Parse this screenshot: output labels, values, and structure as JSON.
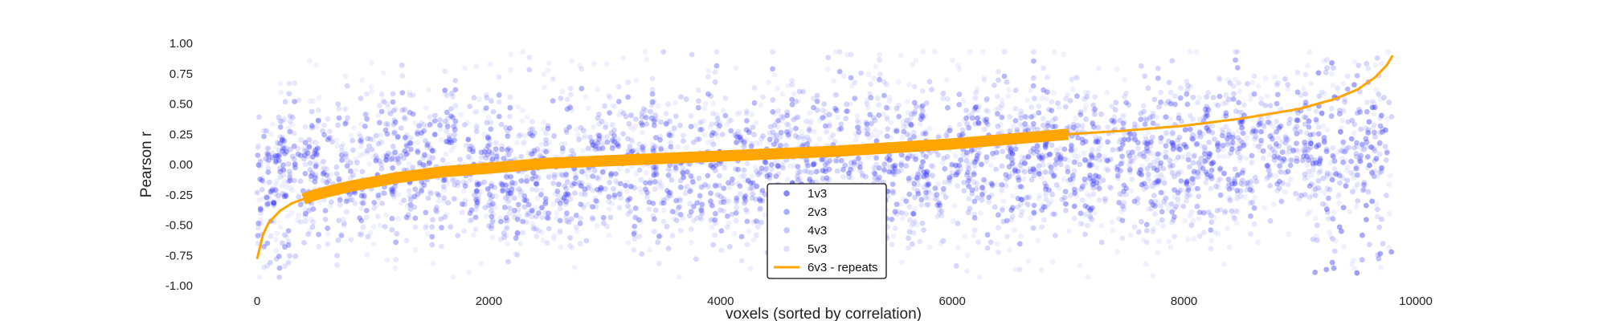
{
  "chart_data": {
    "type": "scatter",
    "title": "",
    "xlabel": "voxels (sorted by correlation)",
    "ylabel": "Pearson r",
    "xlim": [
      0,
      10000
    ],
    "ylim": [
      -1.0,
      1.0
    ],
    "xticks": [
      "0",
      "2000",
      "4000",
      "6000",
      "8000",
      "10000"
    ],
    "yticks": [
      "1.00",
      "0.75",
      "0.50",
      "0.25",
      "0.00",
      "-0.25",
      "-0.50",
      "-0.75",
      "-1.00"
    ],
    "grid": false,
    "legend_position": "bottom-center",
    "n_voxels": 9800,
    "series": [
      {
        "name": "1v3",
        "kind": "scatter",
        "color": "#3333ff",
        "opacity": 0.35
      },
      {
        "name": "2v3",
        "kind": "scatter",
        "color": "#5c5cff",
        "opacity": 0.25
      },
      {
        "name": "4v3",
        "kind": "scatter",
        "color": "#8080ff",
        "opacity": 0.2
      },
      {
        "name": "5v3",
        "kind": "scatter",
        "color": "#b3b3ff",
        "opacity": 0.2
      },
      {
        "name": "6v3 - repeats",
        "kind": "line",
        "color": "#ffa500",
        "x": [
          0,
          50,
          100,
          200,
          300,
          500,
          800,
          1200,
          1600,
          2000,
          2500,
          3000,
          3500,
          4000,
          4500,
          5000,
          5500,
          6000,
          6500,
          7000,
          7500,
          8000,
          8500,
          9000,
          9300,
          9500,
          9650,
          9750,
          9800
        ],
        "y": [
          -0.78,
          -0.58,
          -0.48,
          -0.38,
          -0.32,
          -0.25,
          -0.18,
          -0.11,
          -0.06,
          -0.03,
          0.01,
          0.03,
          0.05,
          0.07,
          0.09,
          0.11,
          0.14,
          0.17,
          0.21,
          0.25,
          0.28,
          0.32,
          0.38,
          0.46,
          0.54,
          0.62,
          0.72,
          0.82,
          0.9
        ]
      }
    ]
  }
}
